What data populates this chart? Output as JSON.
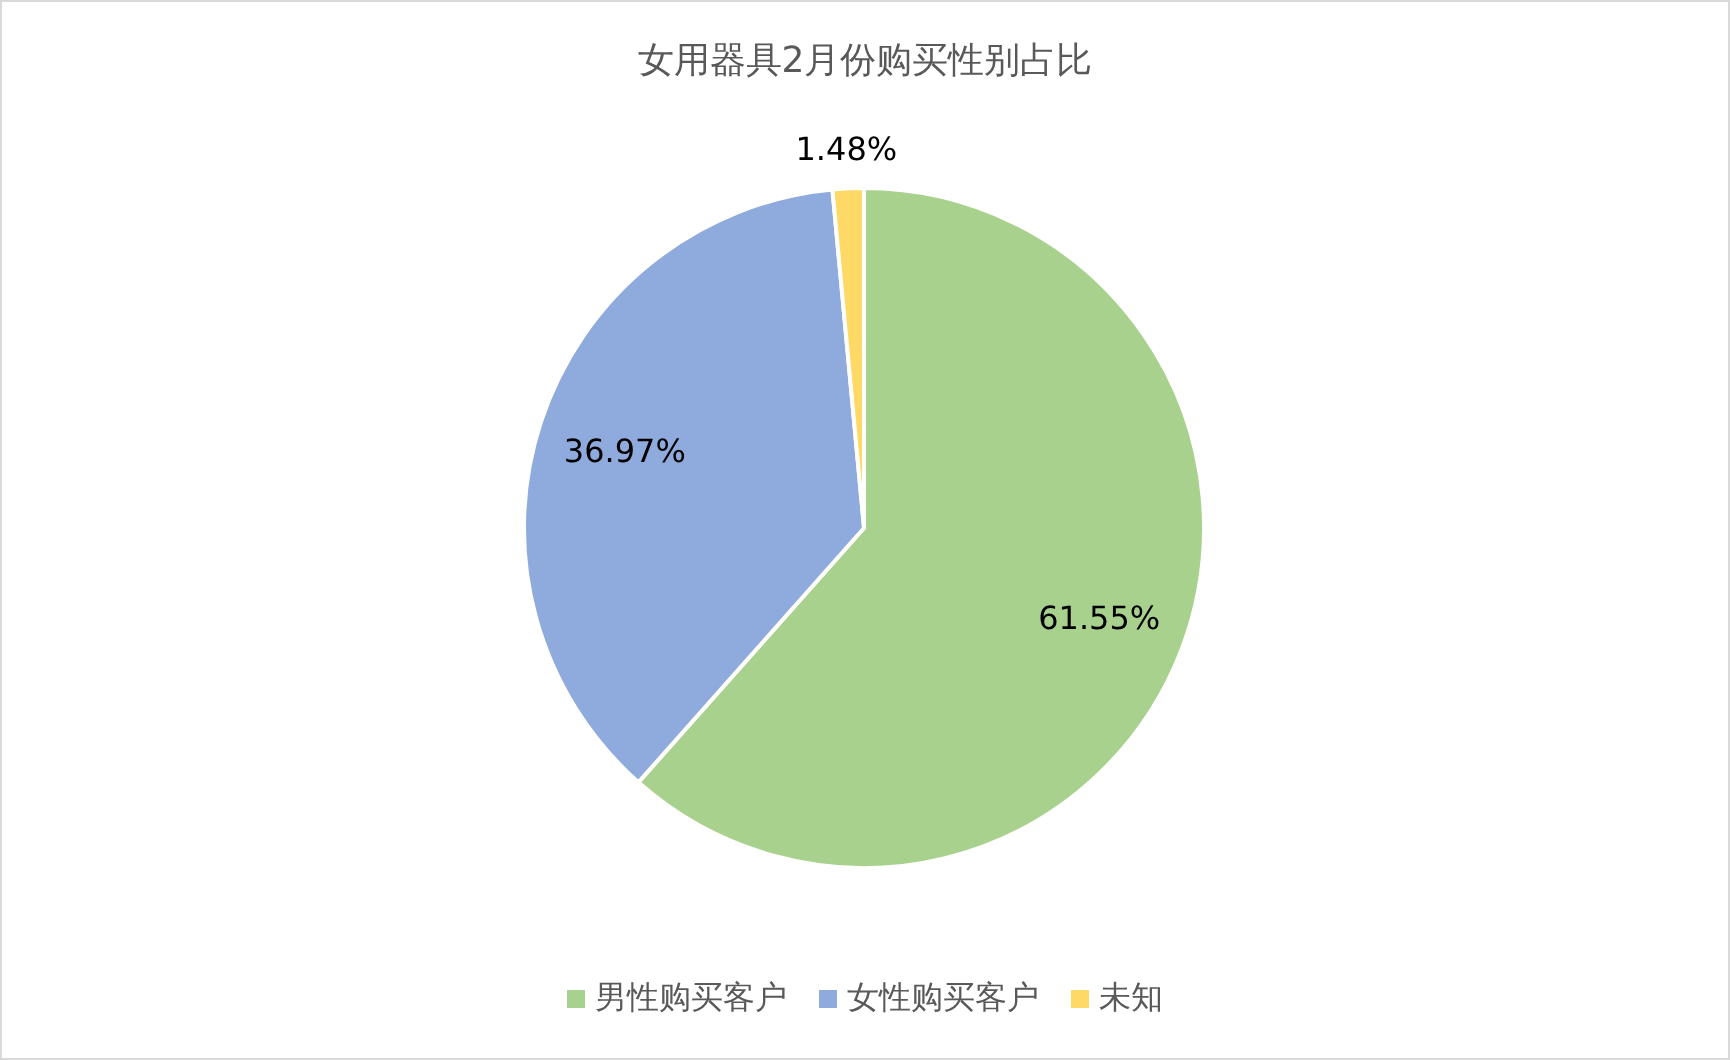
{
  "chart_data": {
    "type": "pie",
    "title": "女用器具2月份购买性别占比",
    "categories": [
      "男性购买客户",
      "女性购买客户",
      "未知"
    ],
    "values": [
      61.55,
      36.97,
      1.48
    ],
    "colors": [
      "#a9d18e",
      "#8faadc",
      "#ffd966"
    ],
    "value_labels": [
      "61.55%",
      "36.97%",
      "1.48%"
    ],
    "legend": "bottom"
  }
}
